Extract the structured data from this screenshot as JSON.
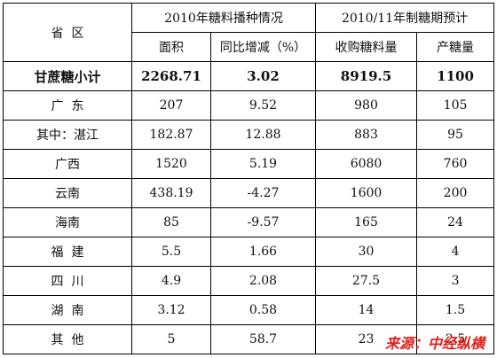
{
  "table": {
    "header": {
      "region": "省  区",
      "group1": "2010年糖料播种情况",
      "group2": "2010/11年制糖期预计",
      "columns": [
        "面积",
        "同比增减（%）",
        "收购糖料量",
        "产糖量"
      ]
    },
    "rows": [
      [
        "甘蔗糖小计",
        "2268.71",
        "3.02",
        "8919.5",
        "1100"
      ],
      [
        "广  东",
        "207",
        "9.52",
        "980",
        "105"
      ],
      [
        "其中：湛江",
        "182.87",
        "12.88",
        "883",
        "95"
      ],
      [
        "广西",
        "1520",
        "5.19",
        "6080",
        "760"
      ],
      [
        "云南",
        "438.19",
        "-4.27",
        "1600",
        "200"
      ],
      [
        "海南",
        "85",
        "-9.57",
        "165",
        "24"
      ],
      [
        "福  建",
        "5.5",
        "1.66",
        "30",
        "4"
      ],
      [
        "四  川",
        "4.9",
        "2.08",
        "27.5",
        "3"
      ],
      [
        "湖  南",
        "3.12",
        "0.58",
        "14",
        "1.5"
      ],
      [
        "其  他",
        "5",
        "58.7",
        "23",
        "2.5"
      ]
    ]
  },
  "watermark": "来源：中经纵横"
}
